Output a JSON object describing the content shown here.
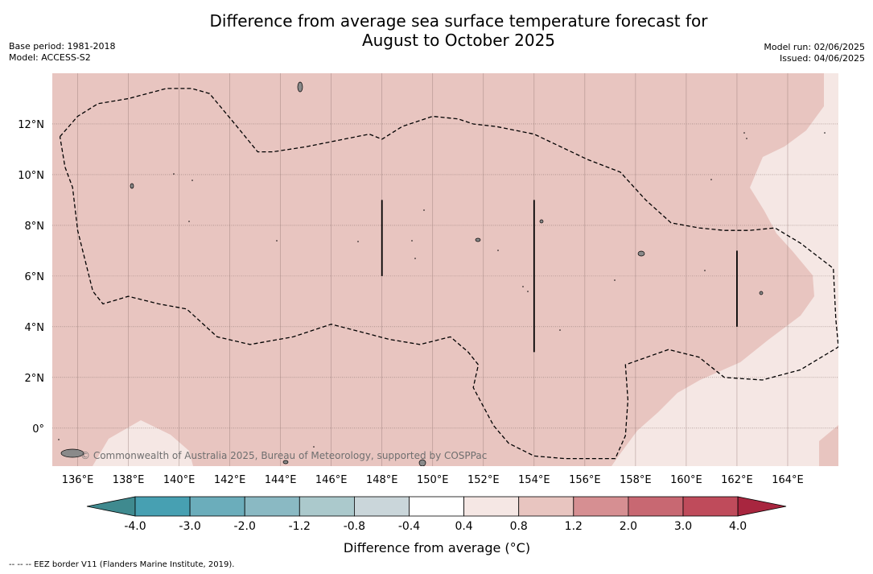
{
  "title_lines": [
    "Difference from average sea surface temperature forecast for",
    "August to October 2025"
  ],
  "meta_left": [
    "Base period: 1981-2018",
    "Model: ACCESS-S2"
  ],
  "meta_right": [
    "Model run: 02/06/2025",
    "Issued: 04/06/2025"
  ],
  "map": {
    "lon_range": [
      135,
      166
    ],
    "lat_range": [
      -1.5,
      14
    ],
    "lon_ticks": [
      "136°E",
      "138°E",
      "140°E",
      "142°E",
      "144°E",
      "146°E",
      "148°E",
      "150°E",
      "152°E",
      "154°E",
      "156°E",
      "158°E",
      "160°E",
      "162°E",
      "164°E"
    ],
    "lat_ticks": [
      "0°",
      "2°N",
      "4°N",
      "6°N",
      "8°N",
      "10°N",
      "12°N"
    ],
    "grid": true,
    "eez_border_style": "dashed",
    "eez_border_path": [
      [
        135.3,
        11.5
      ],
      [
        136,
        12.3
      ],
      [
        136.8,
        12.8
      ],
      [
        138,
        13
      ],
      [
        139.5,
        13.4
      ],
      [
        140.5,
        13.4
      ],
      [
        141.2,
        13.2
      ],
      [
        142.2,
        12
      ],
      [
        143.1,
        10.9
      ],
      [
        143.7,
        10.9
      ],
      [
        145,
        11.1
      ],
      [
        146.5,
        11.4
      ],
      [
        147.5,
        11.6
      ],
      [
        148,
        11.4
      ],
      [
        148.8,
        11.9
      ],
      [
        150,
        12.3
      ],
      [
        151,
        12.2
      ],
      [
        151.6,
        12
      ],
      [
        152.5,
        11.9
      ],
      [
        154,
        11.6
      ],
      [
        156.1,
        10.6
      ],
      [
        157.4,
        10.1
      ],
      [
        158.4,
        9
      ],
      [
        159.4,
        8.1
      ],
      [
        160.5,
        7.9
      ],
      [
        161.5,
        7.8
      ],
      [
        162.5,
        7.8
      ],
      [
        163.5,
        7.9
      ],
      [
        164.5,
        7.3
      ],
      [
        165.8,
        6.3
      ],
      [
        165.9,
        4.3
      ],
      [
        166,
        3.2
      ],
      [
        164.5,
        2.3
      ],
      [
        163,
        1.9
      ],
      [
        161.5,
        2
      ],
      [
        160.5,
        2.8
      ],
      [
        159.3,
        3.1
      ],
      [
        157.6,
        2.5
      ],
      [
        157.7,
        1.1
      ],
      [
        157.6,
        -0.3
      ],
      [
        157.2,
        -1.2
      ],
      [
        155.2,
        -1.2
      ],
      [
        154,
        -1.1
      ],
      [
        153,
        -0.6
      ],
      [
        152.4,
        0.1
      ],
      [
        151.6,
        1.6
      ],
      [
        151.8,
        2.5
      ],
      [
        151.4,
        3
      ],
      [
        150.7,
        3.6
      ],
      [
        149.5,
        3.3
      ],
      [
        148.3,
        3.5
      ],
      [
        146,
        4.1
      ],
      [
        144.5,
        3.6
      ],
      [
        142.8,
        3.3
      ],
      [
        141.5,
        3.6
      ],
      [
        140.3,
        4.7
      ],
      [
        139.2,
        4.9
      ],
      [
        138,
        5.2
      ],
      [
        137,
        4.9
      ],
      [
        136.6,
        5.4
      ],
      [
        136,
        7.8
      ],
      [
        135.8,
        9.5
      ],
      [
        135.5,
        10.3
      ],
      [
        135.3,
        11.5
      ]
    ],
    "internal_segments": [
      {
        "lon": 148,
        "lat": [
          6,
          9
        ]
      },
      {
        "lon": 154,
        "lat": [
          3,
          9
        ]
      },
      {
        "lon": 162,
        "lat": [
          4,
          7
        ]
      }
    ],
    "anomaly_regions": [
      {
        "value_range": [
          0.8,
          1.2
        ],
        "color": "#e8c5c0"
      },
      {
        "value_range": [
          0.4,
          0.8
        ],
        "color": "#f5e7e4"
      }
    ],
    "watermark": "© Commonwealth of Australia 2025, Bureau of Meteorology, supported by COSPPac"
  },
  "colorbar": {
    "label": "Difference from average (°C)",
    "label_main": "Difference from average (",
    "label_unit": "°C",
    "label_close": ")",
    "tick_labels": [
      "-4.0",
      "-3.0",
      "-2.0",
      "-1.2",
      "-0.8",
      "-0.4",
      "0.4",
      "0.8",
      "1.2",
      "2.0",
      "3.0",
      "4.0"
    ],
    "bin_colors": [
      "#47a0b2",
      "#6badbb",
      "#8ab9c3",
      "#abc9cc",
      "#cad6da",
      "#ffffff",
      "#f5e7e4",
      "#e8c5c0",
      "#d68f92",
      "#c86872",
      "#bf4b5b"
    ],
    "extend_low_color": "#3f8a8f",
    "extend_high_color": "#a8263f"
  },
  "footnote": "--  --  -- EEZ border V11 (Flanders Marine Institute, 2019)."
}
